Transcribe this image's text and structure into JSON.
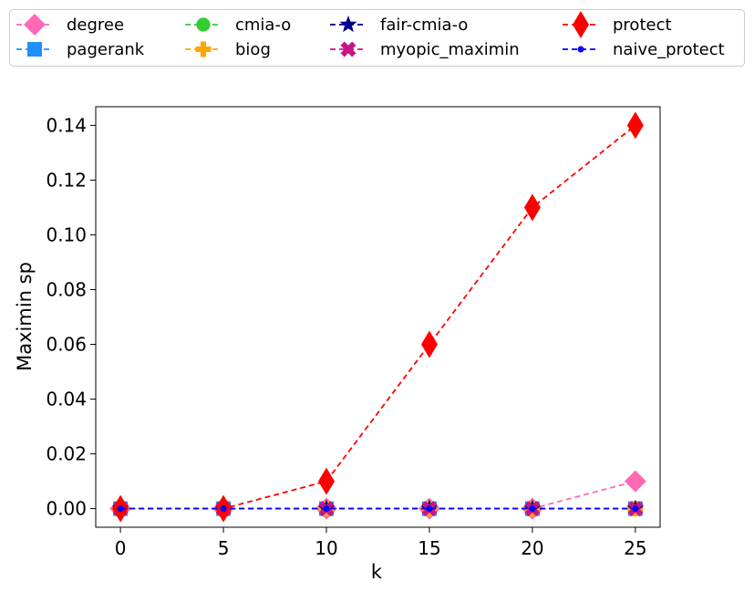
{
  "chart_data": {
    "type": "line",
    "xlabel": "k",
    "ylabel": "Maximin sp",
    "x": [
      0,
      5,
      10,
      15,
      20,
      25
    ],
    "xlim": [
      -1.2,
      26.2
    ],
    "ylim": [
      -0.0068,
      0.1468
    ],
    "x_ticks": [
      0,
      5,
      10,
      15,
      20,
      25
    ],
    "y_ticks": [
      0.0,
      0.02,
      0.04,
      0.06,
      0.08,
      0.1,
      0.12,
      0.14
    ],
    "y_tick_labels": [
      "0.00",
      "0.02",
      "0.04",
      "0.06",
      "0.08",
      "0.10",
      "0.12",
      "0.14"
    ],
    "legend_position": "top",
    "grid": false,
    "series": [
      {
        "name": "degree",
        "color": "#ff69b4",
        "marker": "diamond",
        "values": [
          0,
          0,
          0,
          0,
          0,
          0.01
        ]
      },
      {
        "name": "pagerank",
        "color": "#1e90ff",
        "marker": "square",
        "values": [
          0,
          0,
          0,
          0,
          0,
          0
        ]
      },
      {
        "name": "cmia-o",
        "color": "#32cd32",
        "marker": "circle",
        "values": [
          0,
          0,
          0,
          0,
          0,
          0
        ]
      },
      {
        "name": "biog",
        "color": "#ffa500",
        "marker": "plus",
        "values": [
          0,
          0,
          0,
          0,
          0,
          0
        ]
      },
      {
        "name": "fair-cmia-o",
        "color": "#00008b",
        "marker": "star",
        "values": [
          0,
          0,
          0,
          0,
          0,
          0
        ]
      },
      {
        "name": "myopic_maximin",
        "color": "#c71585",
        "marker": "x",
        "values": [
          0,
          0,
          0,
          0,
          0,
          0
        ]
      },
      {
        "name": "protect",
        "color": "#ff0000",
        "marker": "thin_diamond",
        "values": [
          0,
          0,
          0.01,
          0.06,
          0.11,
          0.14
        ]
      },
      {
        "name": "naive_protect",
        "color": "#0000ff",
        "marker": "dot",
        "values": [
          0,
          0,
          0,
          0,
          0,
          0
        ]
      }
    ]
  }
}
